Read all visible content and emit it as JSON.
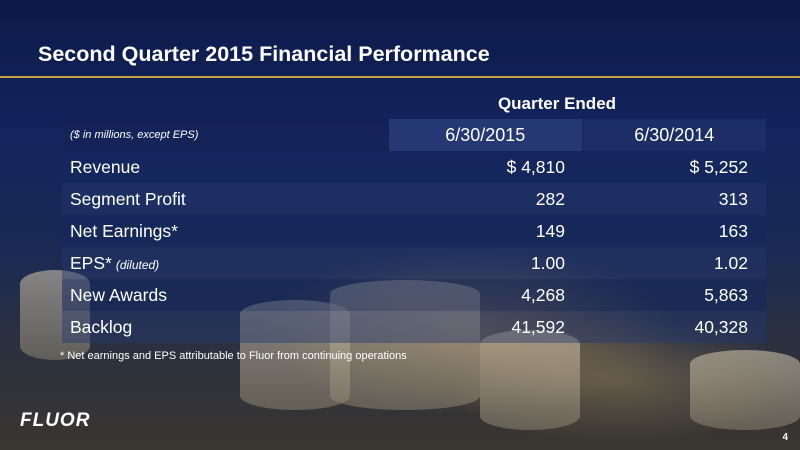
{
  "slide": {
    "title": "Second Quarter 2015 Financial Performance",
    "page_number": "4",
    "logo_text": "FLUOR",
    "footnote": "* Net earnings and EPS attributable to Fluor from continuing operations"
  },
  "table": {
    "group_header": "Quarter Ended",
    "units_note": "($ in millions, except EPS)",
    "columns": [
      "6/30/2015",
      "6/30/2014"
    ],
    "rows": [
      {
        "label": "Revenue",
        "sub": "",
        "values": [
          "$ 4,810",
          "$ 5,252"
        ]
      },
      {
        "label": "Segment Profit",
        "sub": "",
        "values": [
          "282",
          "313"
        ]
      },
      {
        "label": "Net Earnings*",
        "sub": "",
        "values": [
          "149",
          "163"
        ]
      },
      {
        "label": "EPS*",
        "sub": "(diluted)",
        "values": [
          "1.00",
          "1.02"
        ]
      },
      {
        "label": "New Awards",
        "sub": "",
        "values": [
          "4,268",
          "5,863"
        ]
      },
      {
        "label": "Backlog",
        "sub": "",
        "values": [
          "41,592",
          "40,328"
        ]
      }
    ]
  }
}
